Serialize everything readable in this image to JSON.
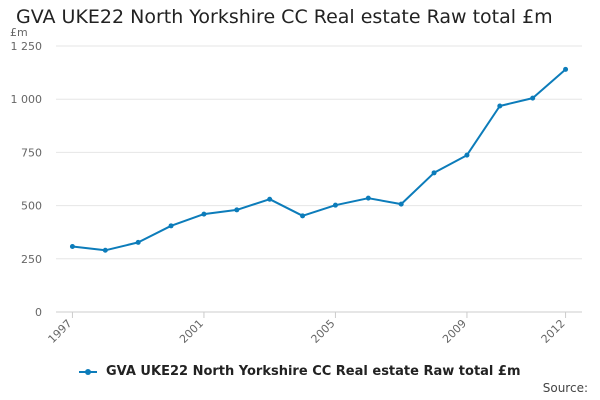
{
  "chart_data": {
    "type": "line",
    "title": "GVA UKE22 North Yorkshire CC Real estate Raw total £m",
    "y_unit": "£m",
    "xlabel": "",
    "ylabel": "",
    "x": [
      1997,
      1998,
      1999,
      2000,
      2001,
      2002,
      2003,
      2004,
      2005,
      2006,
      2007,
      2008,
      2009,
      2010,
      2011,
      2012
    ],
    "x_tick_labels": [
      "1997",
      "2001",
      "2005",
      "2009",
      "2012"
    ],
    "y_tick_labels": [
      "0",
      "250",
      "500",
      "750",
      "1 000",
      "1 250"
    ],
    "ylim": [
      0,
      1250
    ],
    "series": [
      {
        "name": "GVA UKE22 North Yorkshire CC Real estate Raw total £m",
        "color": "#0c7cba",
        "values": [
          308,
          290,
          327,
          405,
          460,
          480,
          530,
          452,
          502,
          535,
          507,
          654,
          737,
          968,
          1005,
          1140
        ]
      }
    ],
    "grid": true,
    "legend_position": "bottom"
  },
  "footer": {
    "source_label": "Source:"
  }
}
